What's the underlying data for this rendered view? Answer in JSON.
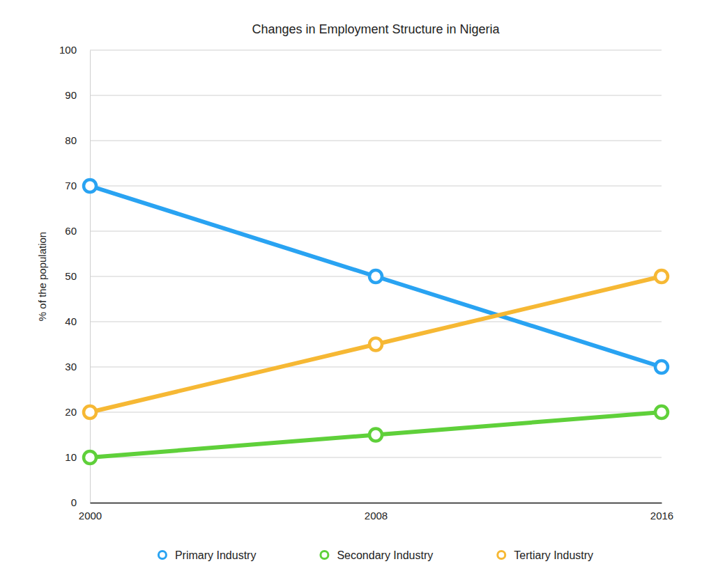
{
  "chart_data": {
    "type": "line",
    "title": "Changes in Employment Structure in Nigeria",
    "y_label": "% of the population",
    "x": [
      2000,
      2008,
      2016
    ],
    "xlim": [
      2000,
      2016
    ],
    "xticks": [
      2000,
      2008,
      2016
    ],
    "ylim": [
      0,
      100
    ],
    "yticks": [
      0,
      10,
      20,
      30,
      40,
      50,
      60,
      70,
      80,
      90,
      100
    ],
    "grid": true,
    "legend": "bottom",
    "series": [
      {
        "name": "Primary Industry",
        "color": "#29a3f2",
        "marker": "circle",
        "values": [
          70,
          50,
          30
        ]
      },
      {
        "name": "Secondary Industry",
        "color": "#5fd03a",
        "marker": "circle",
        "values": [
          10,
          15,
          20
        ]
      },
      {
        "name": "Tertiary Industry",
        "color": "#f6b834",
        "marker": "circle",
        "values": [
          20,
          35,
          50
        ]
      }
    ]
  }
}
